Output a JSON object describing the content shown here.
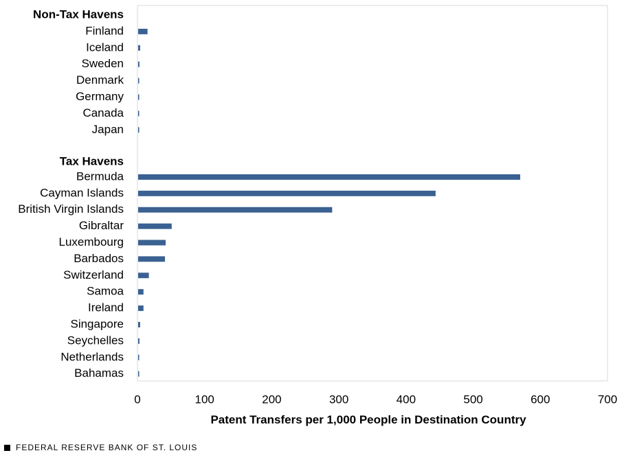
{
  "chart_data": {
    "type": "bar",
    "orientation": "horizontal",
    "groups": [
      {
        "name": "Non-Tax Havens",
        "categories": [
          "Finland",
          "Iceland",
          "Sweden",
          "Denmark",
          "Germany",
          "Canada",
          "Japan"
        ],
        "values": [
          15,
          4,
          3,
          2,
          2,
          1,
          1
        ]
      },
      {
        "name": "Tax Havens",
        "categories": [
          "Bermuda",
          "Cayman Islands",
          "British Virgin Islands",
          "Gibraltar",
          "Luxembourg",
          "Barbados",
          "Switzerland",
          "Samoa",
          "Ireland",
          "Singapore",
          "Seychelles",
          "Netherlands",
          "Bahamas"
        ],
        "values": [
          570,
          444,
          290,
          51,
          42,
          41,
          17,
          9,
          9,
          4,
          3,
          2,
          1
        ]
      }
    ],
    "xlabel": "Patent Transfers per 1,000 People in Destination  Country",
    "xlim": [
      0,
      700
    ],
    "xticks": [
      0,
      100,
      200,
      300,
      400,
      500,
      600,
      700
    ],
    "grid": false,
    "bar_color": "#3a6191"
  },
  "footer": {
    "source": "FEDERAL RESERVE BANK OF ST. LOUIS"
  }
}
